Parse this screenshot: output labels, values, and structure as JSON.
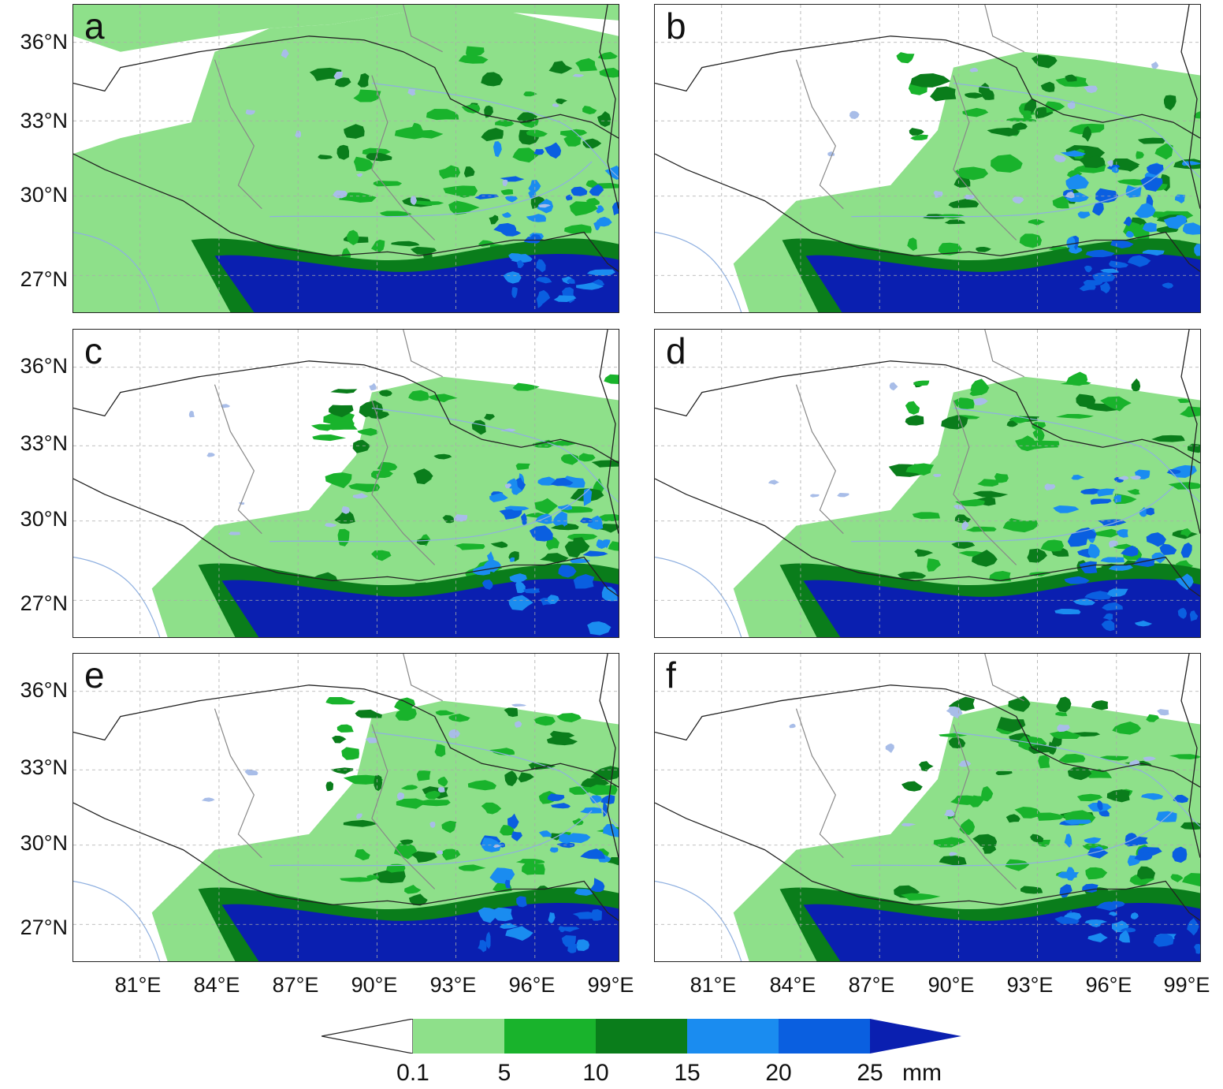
{
  "panels": [
    {
      "letter": "a"
    },
    {
      "letter": "b"
    },
    {
      "letter": "c"
    },
    {
      "letter": "d"
    },
    {
      "letter": "e"
    },
    {
      "letter": "f"
    }
  ],
  "latitude_labels": [
    "36°N",
    "33°N",
    "30°N",
    "27°N"
  ],
  "longitude_labels": [
    "81°E",
    "84°E",
    "87°E",
    "90°E",
    "93°E",
    "96°E",
    "99°E"
  ],
  "colorbar": {
    "ticks": [
      "0.1",
      "5",
      "10",
      "15",
      "20",
      "25"
    ],
    "unit": "mm",
    "colors": {
      "below_min": "#ffffff",
      "bin_0.1_5": "#8ee08a",
      "bin_5_10": "#19b32c",
      "bin_10_15": "#0a7d1b",
      "bin_15_20": "#1a8cf0",
      "bin_20_25": "#0a5fe0",
      "above_max": "#0a1fb0"
    }
  },
  "map_colors": {
    "water": "#a8bde8",
    "river": "#8fb0e0",
    "national_border": "#222222",
    "province_border": "#888888",
    "grid": "#aaaaaa"
  }
}
